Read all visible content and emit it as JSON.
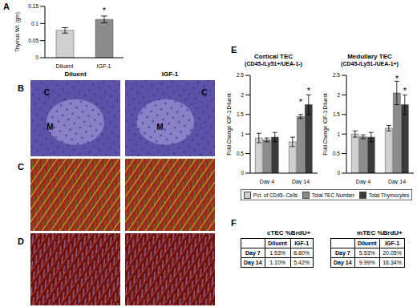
{
  "panel_labels": [
    "A",
    "B",
    "C",
    "D",
    "E",
    "F"
  ],
  "chart_data": [
    {
      "type": "bar",
      "y_label": "Thymus Wt. (gm)",
      "categories": [
        "Diluent",
        "IGF-1"
      ],
      "values": [
        0.08,
        0.112
      ],
      "errors": [
        0.008,
        0.01
      ],
      "colors": [
        "#d0d0d0",
        "#8c8c8c"
      ],
      "ylim": [
        0,
        0.15
      ],
      "yticks": [
        0,
        0.05,
        0.1,
        0.15
      ],
      "annotations": [
        {
          "category": "IGF-1",
          "text": "*"
        }
      ]
    },
    {
      "type": "bar",
      "title": "Cortical TEC",
      "subtitle": "(CD45-/Ly51+/UEA-1-)",
      "y_label": "Fold Change IGF-1:Diluent",
      "categories": [
        "Day 4",
        "Day 14"
      ],
      "series": [
        {
          "name": "Pct. of CD45- Cells",
          "color": "#d0d0d0",
          "values": [
            0.9,
            0.8
          ],
          "errors": [
            0.12,
            0.12
          ]
        },
        {
          "name": "Total TEC Number",
          "color": "#8c8c8c",
          "values": [
            0.85,
            1.45
          ],
          "errors": [
            0.05,
            0.05
          ]
        },
        {
          "name": "Total Thymocytes",
          "color": "#3a3a3a",
          "values": [
            0.92,
            1.75
          ],
          "errors": [
            0.12,
            0.25
          ]
        }
      ],
      "ylim": [
        0,
        2.5
      ],
      "yticks": [
        0,
        0.5,
        1,
        1.5,
        2,
        2.5
      ],
      "legend": "bottom",
      "annotations": [
        {
          "category": "Day 14",
          "series": "Total TEC Number",
          "text": "*"
        },
        {
          "category": "Day 14",
          "series": "Total Thymocytes",
          "text": "*"
        }
      ]
    },
    {
      "type": "bar",
      "title": "Medullary TEC",
      "subtitle": "(CD45-/Ly51-/UEA-1+)",
      "y_label": "Fold Change IGF-1:Diluent",
      "categories": [
        "Day 4",
        "Day 14"
      ],
      "series": [
        {
          "name": "Pct. of CD45- Cells",
          "color": "#d0d0d0",
          "values": [
            1.0,
            1.15
          ],
          "errors": [
            0.08,
            0.07
          ]
        },
        {
          "name": "Total TEC Number",
          "color": "#8c8c8c",
          "values": [
            0.93,
            2.05
          ],
          "errors": [
            0.05,
            0.3
          ]
        },
        {
          "name": "Total Thymocytes",
          "color": "#3a3a3a",
          "values": [
            0.92,
            1.75
          ],
          "errors": [
            0.12,
            0.25
          ]
        }
      ],
      "ylim": [
        0,
        2.5
      ],
      "yticks": [
        0,
        0.5,
        1,
        1.5,
        2,
        2.5
      ],
      "annotations": [
        {
          "category": "Day 14",
          "series": "Total TEC Number",
          "text": "*"
        },
        {
          "category": "Day 14",
          "series": "Total Thymocytes",
          "text": "*"
        }
      ]
    }
  ],
  "images": {
    "columns": [
      "Diluent",
      "IGF-1"
    ],
    "B_labels": [
      [
        "C",
        "M"
      ],
      [
        "C",
        "M"
      ]
    ]
  },
  "tables": [
    {
      "title": "cTEC %BrdU+",
      "columns": [
        "Diluent",
        "IGF-1"
      ],
      "rows": [
        {
          "label": "Day 7",
          "cells": [
            "1.53%",
            "8.80%"
          ]
        },
        {
          "label": "Day 14",
          "cells": [
            "1.10%",
            "5.42%"
          ]
        }
      ]
    },
    {
      "title": "mTEC %BrdU+",
      "columns": [
        "Diluent",
        "IGF-1"
      ],
      "rows": [
        {
          "label": "Day 7",
          "cells": [
            "5.53%",
            "20.05%"
          ]
        },
        {
          "label": "Day 14",
          "cells": [
            "9.99%",
            "16.34%"
          ]
        }
      ]
    }
  ]
}
